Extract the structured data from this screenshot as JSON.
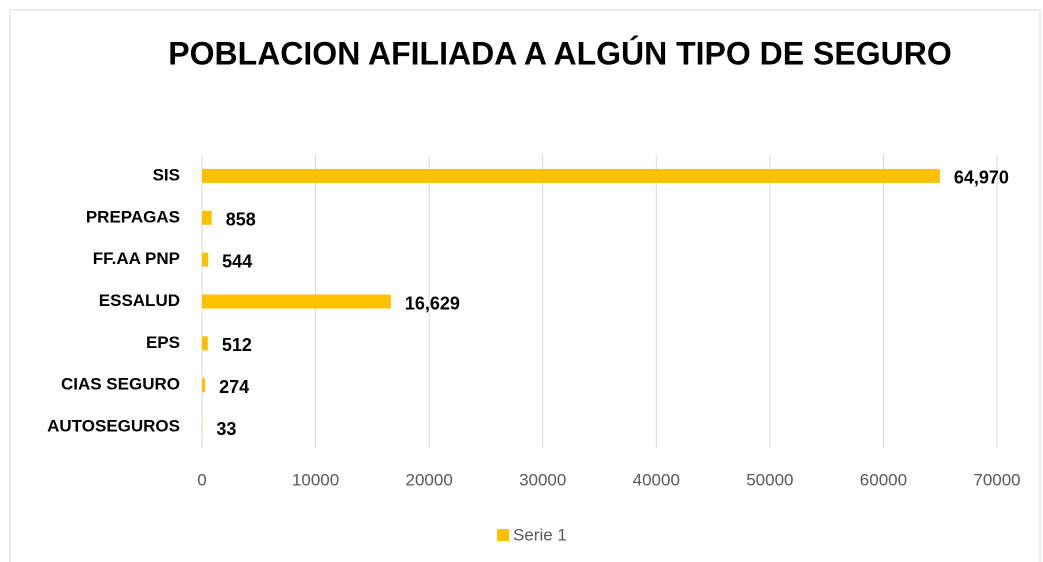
{
  "chart_data": {
    "type": "barh",
    "title": "POBLACION AFILIADA A ALGÚN TIPO DE SEGURO",
    "categories": [
      "SIS",
      "PREPAGAS",
      "FF.AA PNP",
      "ESSALUD",
      "EPS",
      "CIAS SEGURO",
      "AUTOSEGUROS"
    ],
    "series": [
      {
        "name": "Serie 1",
        "color": "#ffc000",
        "values": [
          64970,
          858,
          544,
          16629,
          512,
          274,
          33
        ],
        "value_labels": [
          "64,970",
          "858",
          "544",
          "16,629",
          "512",
          "274",
          "33"
        ]
      }
    ],
    "xlim": [
      0,
      70000
    ],
    "xticks": [
      0,
      10000,
      20000,
      30000,
      40000,
      50000,
      60000,
      70000
    ],
    "grid": true,
    "legend": "bottom"
  }
}
